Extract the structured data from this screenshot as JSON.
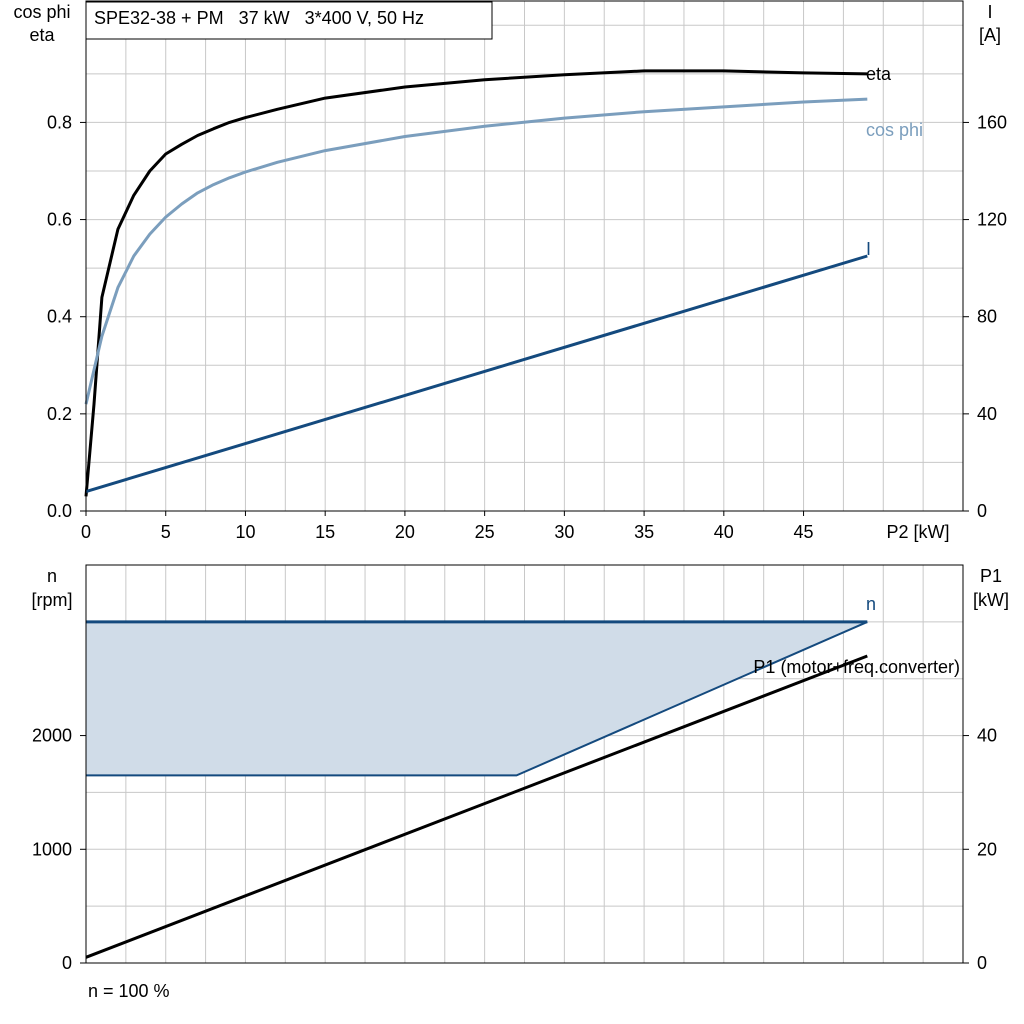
{
  "title": "SPE32-38 + PM   37 kW   3*400 V, 50 Hz",
  "footer": "n = 100 %",
  "colors": {
    "eta": "#000000",
    "cos_phi": "#7b9ebd",
    "current": "#144a7e",
    "speed": "#144a7e",
    "speed_fill": "#d0dce8",
    "power": "#000000",
    "grid": "#c8c8c8"
  },
  "chart_data": [
    {
      "type": "line",
      "x_axis": {
        "label": "P2 [kW]",
        "range": [
          0,
          55
        ],
        "ticks": [
          0,
          5,
          10,
          15,
          20,
          25,
          30,
          35,
          40,
          45
        ]
      },
      "y_left": {
        "label_line1": "cos phi",
        "label_line2": "eta",
        "range": [
          0,
          1.05
        ],
        "ticks": [
          "0.0",
          "0.2",
          "0.4",
          "0.6",
          "0.8"
        ]
      },
      "y_right": {
        "label_line1": "I",
        "label_line2": "[A]",
        "range": [
          0,
          210
        ],
        "ticks": [
          "0",
          "40",
          "80",
          "120",
          "160"
        ]
      },
      "grid": true,
      "series": [
        {
          "name": "eta",
          "axis": "left",
          "x": [
            0,
            0.5,
            1,
            2,
            3,
            4,
            5,
            6,
            7,
            8,
            9,
            10,
            12,
            15,
            20,
            25,
            30,
            35,
            40,
            45,
            49
          ],
          "y": [
            0.03,
            0.22,
            0.44,
            0.58,
            0.65,
            0.7,
            0.735,
            0.755,
            0.773,
            0.787,
            0.8,
            0.81,
            0.827,
            0.85,
            0.873,
            0.888,
            0.898,
            0.906,
            0.906,
            0.902,
            0.9
          ]
        },
        {
          "name": "cos phi",
          "axis": "left",
          "x": [
            0,
            1,
            2,
            3,
            4,
            5,
            6,
            7,
            8,
            9,
            10,
            12,
            15,
            20,
            25,
            30,
            35,
            40,
            45,
            49
          ],
          "y": [
            0.22,
            0.36,
            0.46,
            0.525,
            0.57,
            0.605,
            0.632,
            0.655,
            0.672,
            0.686,
            0.698,
            0.718,
            0.742,
            0.771,
            0.792,
            0.809,
            0.822,
            0.832,
            0.842,
            0.848
          ]
        },
        {
          "name": "I",
          "axis": "right",
          "x": [
            0,
            49
          ],
          "y": [
            8,
            105
          ]
        }
      ]
    },
    {
      "type": "area",
      "x_axis": {
        "range": [
          0,
          55
        ],
        "ticks": []
      },
      "y_left": {
        "label_line1": "n",
        "label_line2": "[rpm]",
        "range": [
          0,
          3500
        ],
        "ticks": [
          "0",
          "1000",
          "2000"
        ]
      },
      "y_right": {
        "label_line1": "P1",
        "label_line2": "[kW]",
        "range": [
          0,
          70
        ],
        "ticks": [
          "0",
          "20",
          "40"
        ]
      },
      "grid": true,
      "series": [
        {
          "name": "n",
          "axis": "left",
          "x": [
            0,
            49
          ],
          "y": [
            3000,
            3000
          ],
          "band_lower": {
            "x": [
              0,
              27,
              49
            ],
            "y": [
              1650,
              1650,
              3000
            ]
          }
        },
        {
          "name": "P1 (motor+freq.converter)",
          "axis": "right",
          "x": [
            0,
            49
          ],
          "y": [
            1,
            54
          ]
        }
      ]
    }
  ]
}
